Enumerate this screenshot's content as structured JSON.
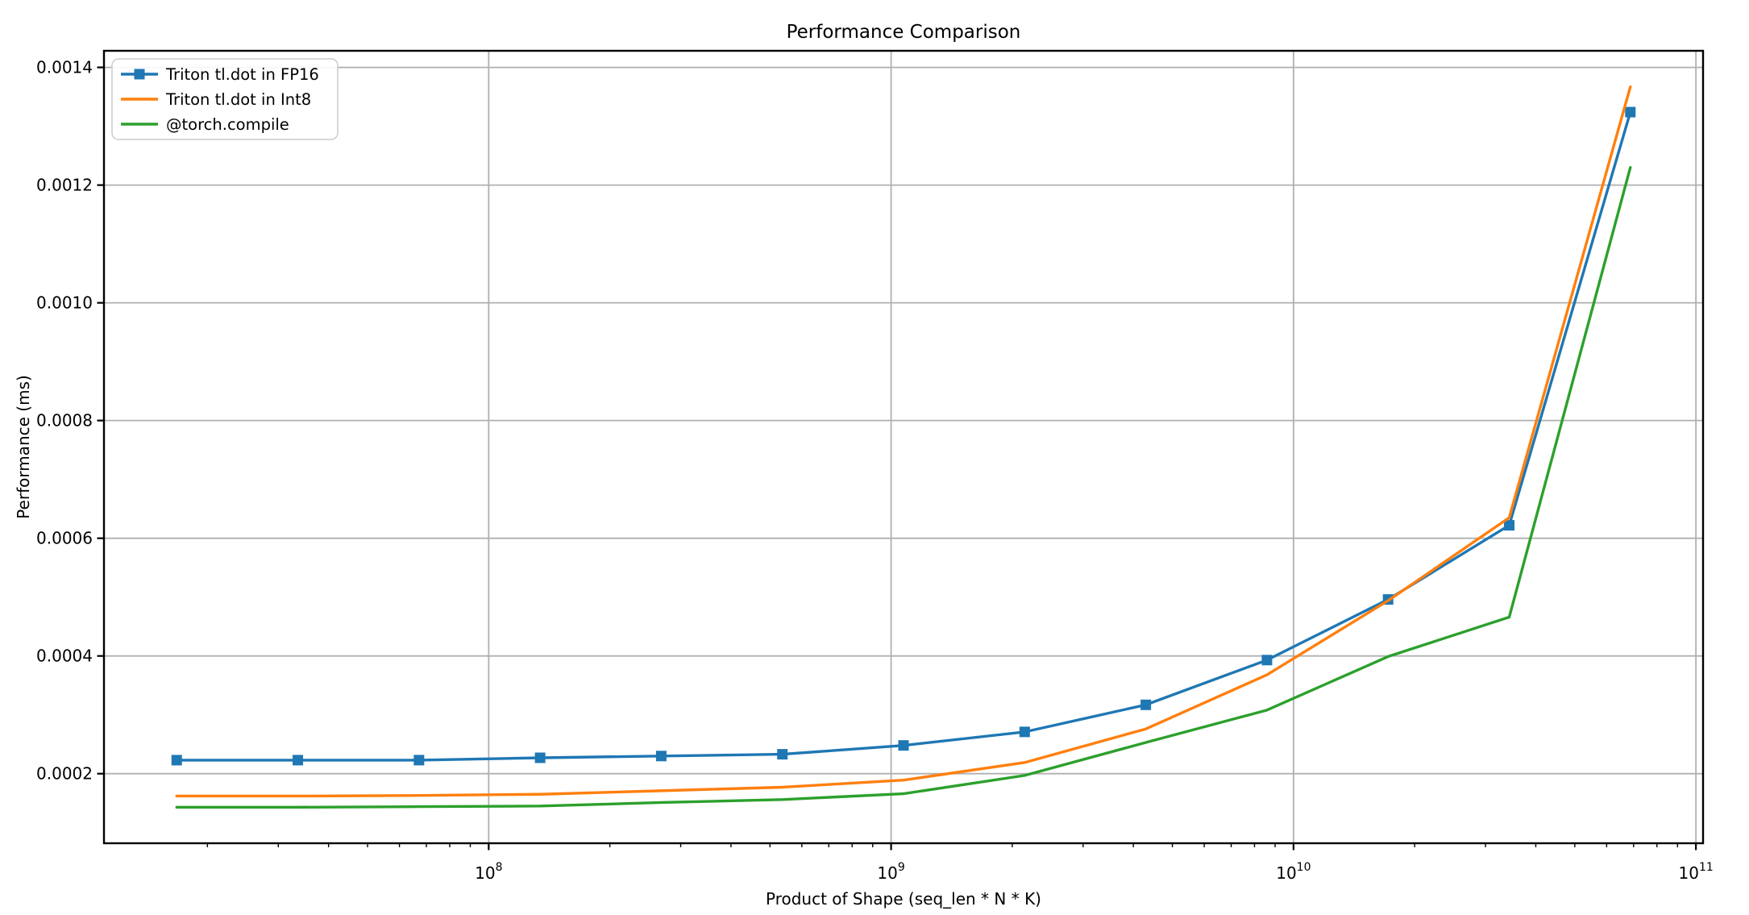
{
  "chart_data": {
    "type": "line",
    "title": "Performance Comparison",
    "xlabel": "Product of Shape (seq_len * N * K)",
    "ylabel": "Performance (ms)",
    "x_scale": "log",
    "grid": true,
    "grid_color": "#b0b0b0",
    "background": "#ffffff",
    "spine_color": "#000000",
    "legend_position": "upper left",
    "x": [
      16777216,
      33554432,
      67108864,
      134217728,
      268435456,
      536870912,
      1073741824,
      2147483648,
      4294967296,
      8589934592,
      17179869184,
      34359738368,
      68719476736
    ],
    "series": [
      {
        "name": "Triton tl.dot in FP16",
        "color": "#1f77b4",
        "marker": "square",
        "values": [
          0.000223,
          0.000223,
          0.000223,
          0.000227,
          0.00023,
          0.000233,
          0.000248,
          0.000271,
          0.000317,
          0.000393,
          0.000496,
          0.000622,
          0.001324
        ]
      },
      {
        "name": "Triton tl.dot in Int8",
        "color": "#ff7f0e",
        "marker": "none",
        "values": [
          0.000162,
          0.000162,
          0.000163,
          0.000165,
          0.000171,
          0.000177,
          0.000189,
          0.000219,
          0.000276,
          0.000368,
          0.000494,
          0.000635,
          0.001367
        ]
      },
      {
        "name": "@torch.compile",
        "color": "#2ca02c",
        "marker": "none",
        "values": [
          0.000143,
          0.000143,
          0.000144,
          0.000145,
          0.000151,
          0.000156,
          0.000166,
          0.000197,
          0.000253,
          0.000308,
          0.000399,
          0.000466,
          0.00123
        ]
      }
    ],
    "xlim": [
      11065000,
      104170000000
    ],
    "ylim": [
      8.18e-05,
      0.0014282
    ],
    "x_ticks": [
      {
        "value": 100000000,
        "base": "10",
        "exp": "8"
      },
      {
        "value": 1000000000,
        "base": "10",
        "exp": "9"
      },
      {
        "value": 10000000000,
        "base": "10",
        "exp": "10"
      },
      {
        "value": 100000000000,
        "base": "10",
        "exp": "11"
      }
    ],
    "y_ticks": [
      {
        "value": 0.0002,
        "label": "0.0002"
      },
      {
        "value": 0.0004,
        "label": "0.0004"
      },
      {
        "value": 0.0006,
        "label": "0.0006"
      },
      {
        "value": 0.0008,
        "label": "0.0008"
      },
      {
        "value": 0.001,
        "label": "0.0010"
      },
      {
        "value": 0.0012,
        "label": "0.0012"
      },
      {
        "value": 0.0014,
        "label": "0.0014"
      }
    ]
  }
}
